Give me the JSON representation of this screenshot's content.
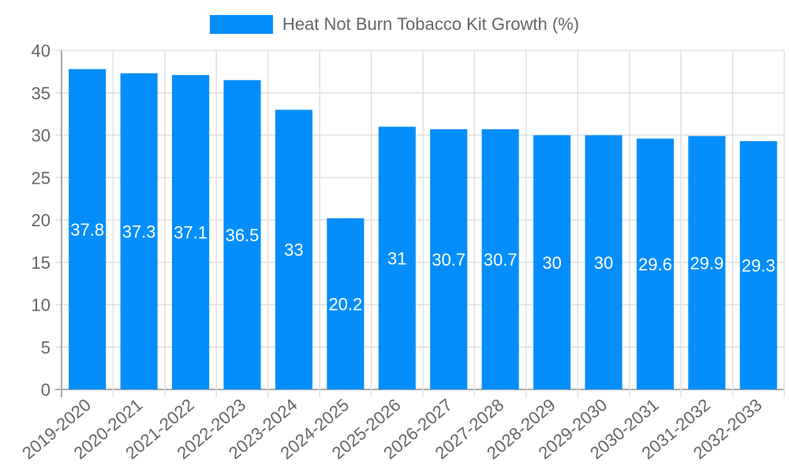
{
  "chart_data": {
    "type": "bar",
    "title": "",
    "legend": {
      "position": "top",
      "entries": [
        "Heat Not Burn Tobacco Kit Growth (%)"
      ]
    },
    "categories": [
      "2019-2020",
      "2020-2021",
      "2021-2022",
      "2022-2023",
      "2023-2024",
      "2024-2025",
      "2025-2026",
      "2026-2027",
      "2027-2028",
      "2028-2029",
      "2029-2030",
      "2030-2031",
      "2031-2032",
      "2032-2033"
    ],
    "series": [
      {
        "name": "Heat Not Burn Tobacco Kit Growth (%)",
        "color": "#038EFB",
        "values": [
          37.8,
          37.3,
          37.1,
          36.5,
          33,
          20.2,
          31,
          30.7,
          30.7,
          30,
          30,
          29.6,
          29.9,
          29.3
        ]
      }
    ],
    "data_labels": [
      "37.8",
      "37.3",
      "37.1",
      "36.5",
      "33",
      "20.2",
      "31",
      "30.7",
      "30.7",
      "30",
      "30",
      "29.6",
      "29.9",
      "29.3"
    ],
    "xlabel": "",
    "ylabel": "",
    "ylim": [
      0,
      40
    ],
    "yticks": [
      0,
      5,
      10,
      15,
      20,
      25,
      30,
      35,
      40
    ],
    "grid": true
  },
  "legend": {
    "label": "Heat Not Burn Tobacco Kit Growth (%)",
    "color": "#038EFB"
  }
}
